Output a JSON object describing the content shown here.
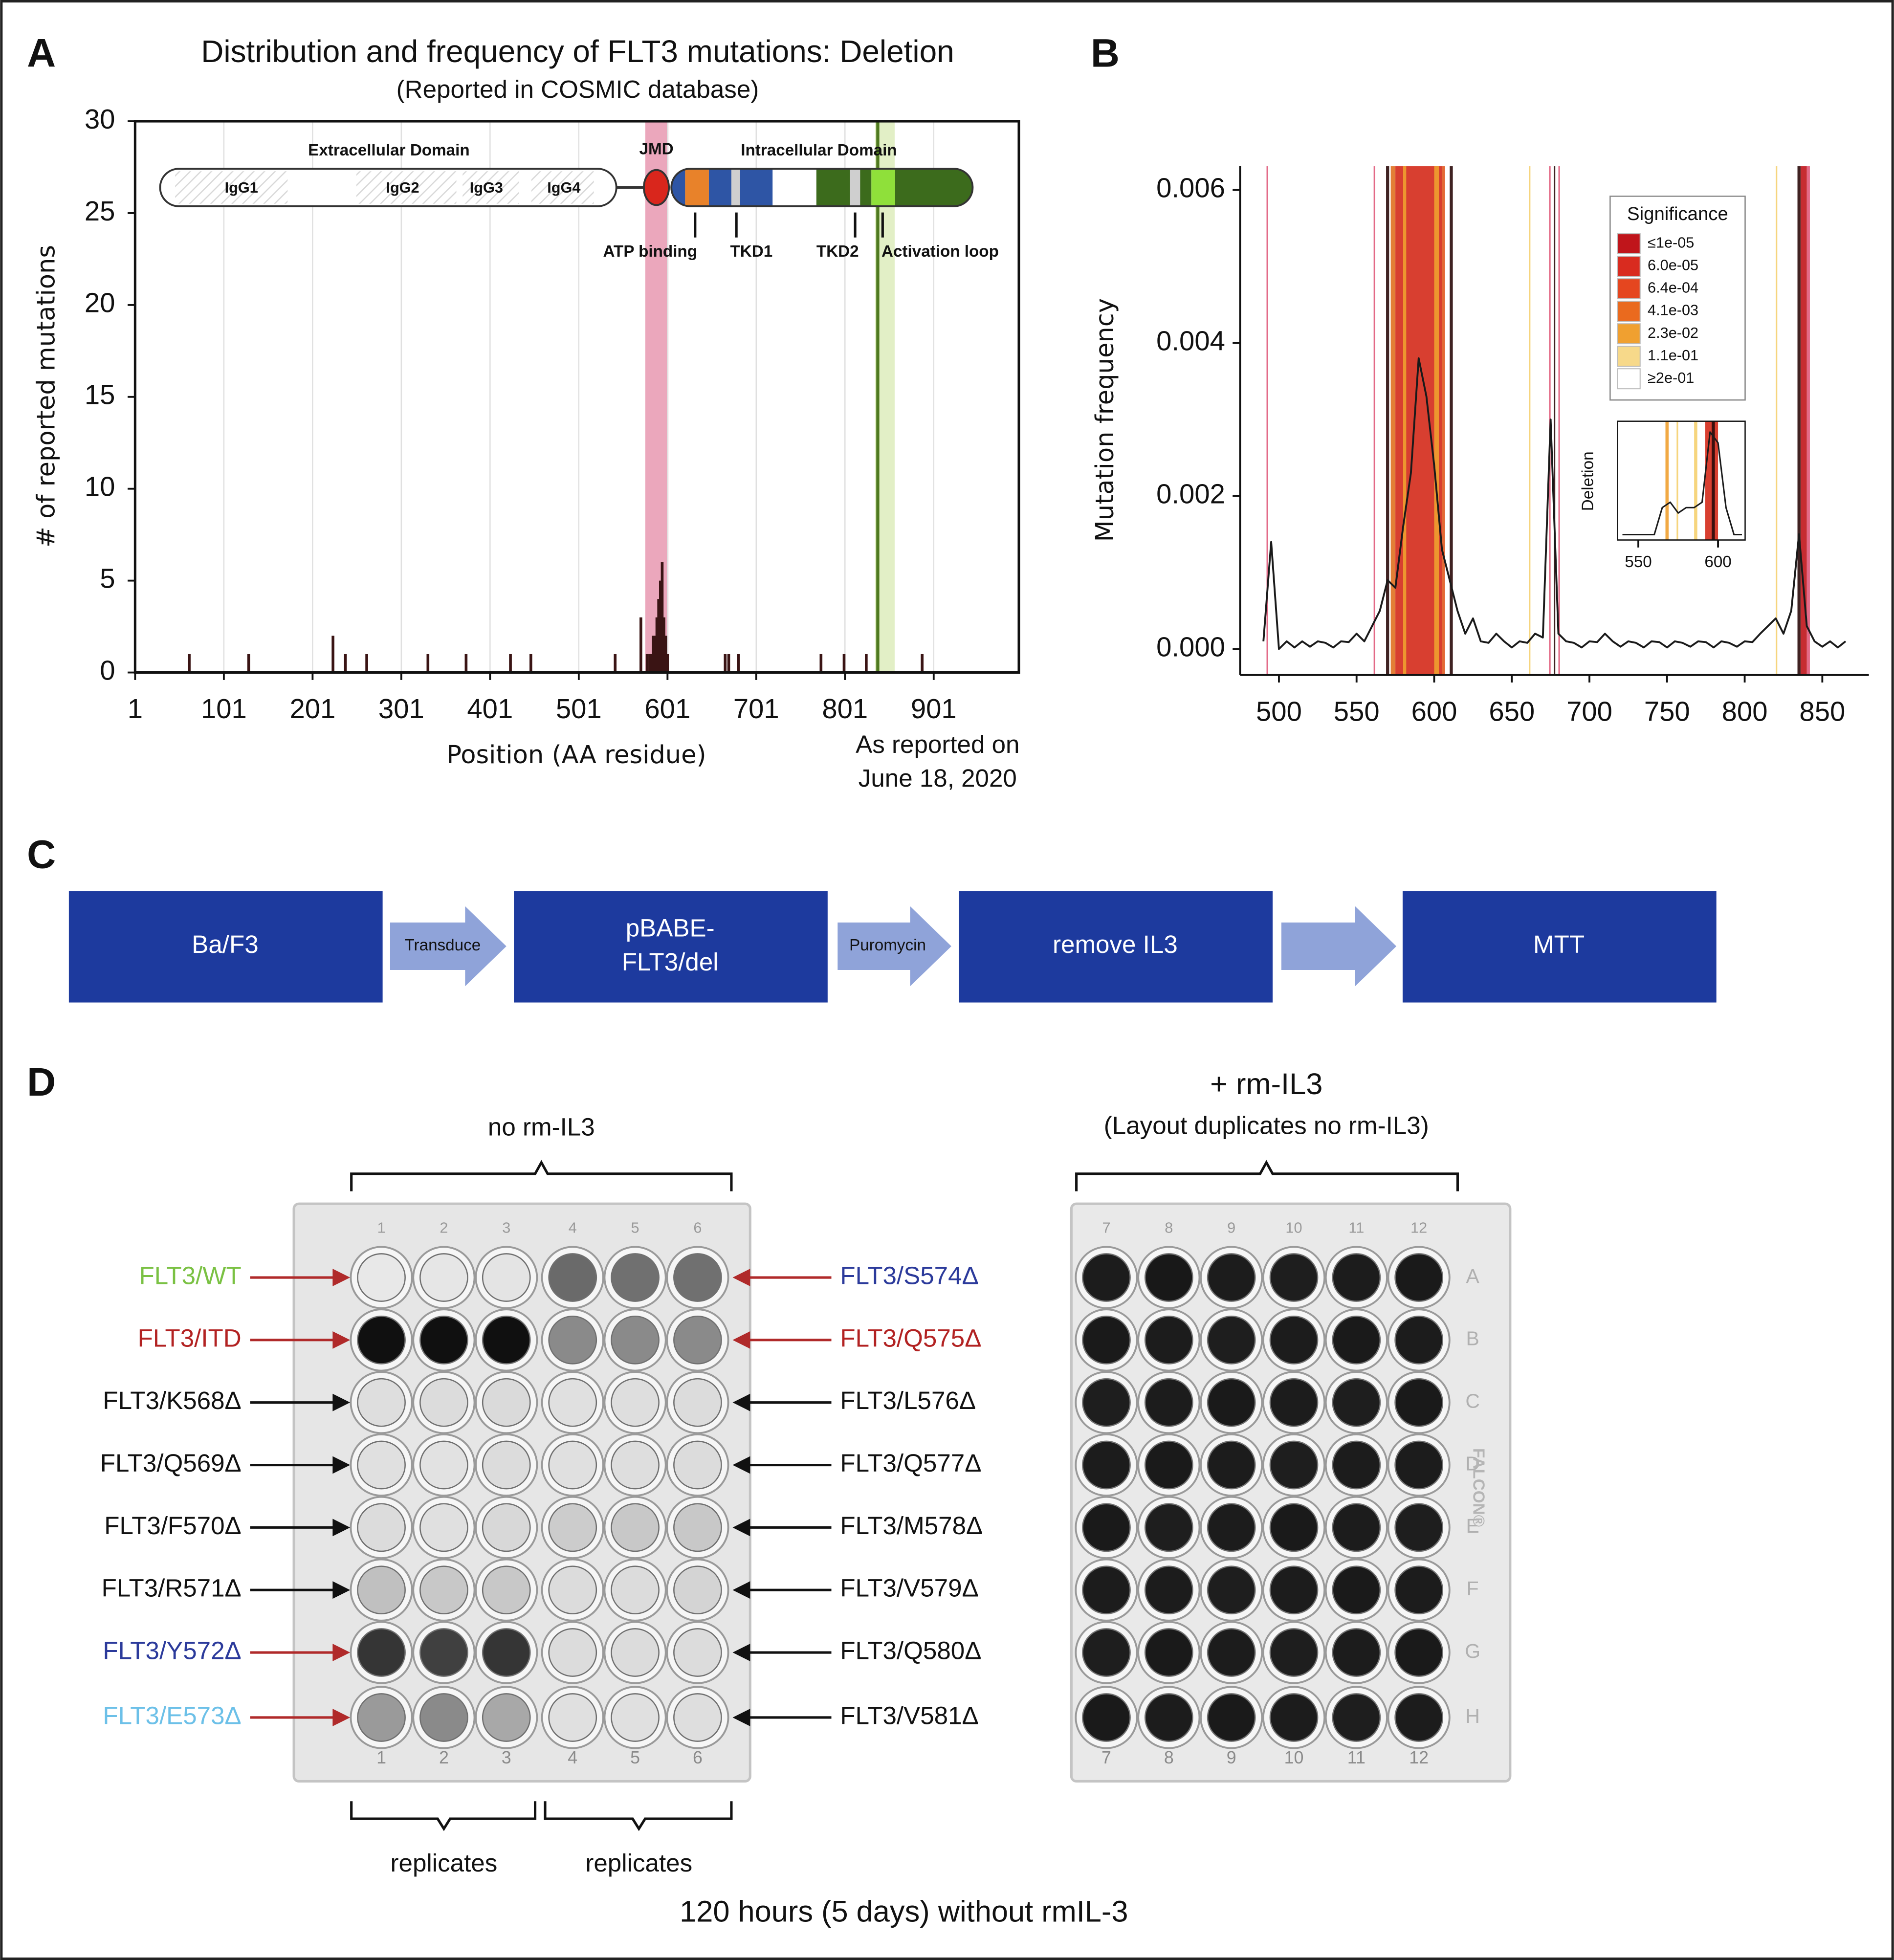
{
  "panel_labels": [
    "A",
    "B",
    "C",
    "D"
  ],
  "chart_data": [
    {
      "type": "bar",
      "title": "Distribution and frequency of FLT3 mutations: Deletion",
      "subtitle": "(Reported in COSMIC database)",
      "xlabel": "Position (AA residue)",
      "ylabel": "# of reported mutations",
      "x": [
        62,
        129,
        224,
        238,
        262,
        331,
        374,
        424,
        447,
        542,
        571,
        578,
        581,
        583,
        585,
        587,
        589,
        591,
        593,
        595,
        597,
        599,
        601,
        666,
        670,
        681,
        774,
        800,
        825,
        888
      ],
      "values": [
        1,
        1,
        2,
        1,
        1,
        1,
        1,
        1,
        1,
        1,
        3,
        1,
        1,
        1,
        2,
        2,
        3,
        4,
        5,
        6,
        3,
        2,
        1,
        1,
        1,
        1,
        1,
        1,
        1,
        1
      ],
      "color": "#3a1414",
      "xlim": [
        1,
        997
      ],
      "ylim": [
        0,
        30
      ],
      "xticks": [
        1,
        101,
        201,
        301,
        401,
        501,
        601,
        701,
        801,
        901
      ],
      "yticks": [
        0,
        5,
        10,
        15,
        20,
        25,
        30
      ],
      "grid": true,
      "highlights": [
        {
          "xrange": [
            576,
            602
          ],
          "color": "#eba7bc"
        },
        {
          "xrange": [
            835,
            857
          ],
          "color": "#e2efc6"
        }
      ],
      "markers": [
        {
          "x": 838,
          "color": "#4f7a1f"
        }
      ],
      "annotation": [
        "As reported on",
        "June 18, 2020"
      ],
      "domain_labels": {
        "extracellular": "Extracellular Domain",
        "intracellular": "Intracellular Domain",
        "jmd": "JMD",
        "igg": [
          "IgG1",
          "IgG2",
          "IgG3",
          "IgG4"
        ],
        "features": [
          "ATP binding",
          "TKD1",
          "TKD2",
          "Activation loop"
        ]
      }
    },
    {
      "type": "line",
      "ylabel": "Mutation frequency",
      "x": [
        490,
        495,
        500,
        505,
        510,
        515,
        520,
        525,
        530,
        535,
        540,
        545,
        550,
        555,
        560,
        565,
        570,
        575,
        580,
        585,
        590,
        595,
        600,
        605,
        610,
        615,
        620,
        625,
        630,
        635,
        640,
        645,
        650,
        655,
        660,
        665,
        670,
        675,
        680,
        685,
        690,
        695,
        700,
        705,
        710,
        715,
        720,
        725,
        730,
        735,
        740,
        745,
        750,
        755,
        760,
        765,
        770,
        775,
        780,
        785,
        790,
        795,
        800,
        805,
        810,
        815,
        820,
        825,
        830,
        835,
        840,
        845,
        850,
        855,
        860,
        865
      ],
      "values": [
        0.0001,
        0.0014,
        0,
        0.0001,
        2e-05,
        0.0001,
        3e-05,
        0.0001,
        8e-05,
        2e-05,
        0.0001,
        9e-05,
        0.0002,
        0.0001,
        0.0003,
        0.0005,
        0.0009,
        0.0008,
        0.0016,
        0.0023,
        0.0038,
        0.0033,
        0.0024,
        0.0013,
        0.0009,
        0.0005,
        0.0002,
        0.0004,
        0.0001,
        8e-05,
        0.0002,
        0.0001,
        2e-05,
        0.0001,
        8e-05,
        0.0002,
        0.00015,
        0.003,
        0.0002,
        0.0001,
        8e-05,
        2e-05,
        0.0001,
        9e-05,
        0.0002,
        0.0001,
        3e-05,
        0.0001,
        8e-05,
        2e-05,
        0.0001,
        9e-05,
        2e-05,
        0.0001,
        8e-05,
        3e-05,
        0.0001,
        9e-05,
        2e-05,
        0.0001,
        8e-05,
        3e-05,
        0.0001,
        9e-05,
        0.0002,
        0.0003,
        0.0004,
        0.0002,
        0.0005,
        0.0015,
        0.0003,
        0.0001,
        3e-05,
        0.0001,
        2e-05,
        0.0001
      ],
      "color": "#1a1a1a",
      "xlim": [
        475,
        880
      ],
      "ylim": [
        -0.00034,
        0.00631
      ],
      "xticks": [
        500,
        550,
        600,
        650,
        700,
        750,
        800,
        850
      ],
      "yticks": [
        {
          "value": 0,
          "label": "0.000"
        },
        0.002,
        0.004,
        0.006
      ],
      "bands": [
        {
          "x": [
            492,
            493
          ],
          "color": "#e05a7a"
        },
        {
          "x": [
            561,
            562
          ],
          "color": "#e05a7a"
        },
        {
          "x": [
            569,
            571
          ],
          "color": "#2a0a0a"
        },
        {
          "x": [
            572,
            575
          ],
          "color": "#e07020"
        },
        {
          "x": [
            575,
            605
          ],
          "color": "#d42a1a"
        },
        {
          "x": [
            580,
            582
          ],
          "color": "#f0a030"
        },
        {
          "x": [
            600,
            603
          ],
          "color": "#f0a030"
        },
        {
          "x": [
            605,
            607
          ],
          "color": "#e05a20"
        },
        {
          "x": [
            610,
            612
          ],
          "color": "#2a0a0a"
        },
        {
          "x": [
            661,
            662
          ],
          "color": "#f5d070"
        },
        {
          "x": [
            674,
            675
          ],
          "color": "#e05a7a"
        },
        {
          "x": [
            677,
            678
          ],
          "color": "#2a0a0a"
        },
        {
          "x": [
            680,
            681
          ],
          "color": "#e05a7a"
        },
        {
          "x": [
            820,
            821
          ],
          "color": "#f5d070"
        },
        {
          "x": [
            834,
            836
          ],
          "color": "#2a0a0a"
        },
        {
          "x": [
            836,
            840
          ],
          "color": "#c0151b"
        },
        {
          "x": [
            840,
            842
          ],
          "color": "#e05a7a"
        }
      ],
      "legend": {
        "title": "Significance",
        "entries": [
          {
            "label": "≤1e-05",
            "color": "#c0151b"
          },
          {
            "label": "6.0e-05",
            "color": "#d92b1f"
          },
          {
            "label": "6.4e-04",
            "color": "#e5461f"
          },
          {
            "label": "4.1e-03",
            "color": "#ea6a1e"
          },
          {
            "label": "2.3e-02",
            "color": "#f0a030"
          },
          {
            "label": "1.1e-01",
            "color": "#f7d98a"
          },
          {
            "label": "≥2e-01",
            "color": "#ffffff"
          }
        ]
      }
    },
    {
      "type": "line",
      "ylabel": "Deletion",
      "x": [
        540,
        545,
        550,
        555,
        560,
        565,
        570,
        575,
        580,
        585,
        590,
        595,
        600,
        605,
        610,
        615
      ],
      "values": [
        0.05,
        0.05,
        0.05,
        0.05,
        0.05,
        0.3,
        0.35,
        0.25,
        0.3,
        0.3,
        0.35,
        1.0,
        0.9,
        0.3,
        0.05,
        0.05
      ],
      "color": "#1a1a1a",
      "xlim": [
        537,
        617
      ],
      "ylim": [
        0,
        1.1
      ],
      "xticks": [
        550,
        600
      ],
      "bands": [
        {
          "x": [
            567,
            569
          ],
          "color": "#f0a030"
        },
        {
          "x": [
            574,
            575
          ],
          "color": "#f5d070"
        },
        {
          "x": [
            585,
            587
          ],
          "color": "#f5d070"
        },
        {
          "x": [
            592,
            600
          ],
          "color": "#d42a1a"
        },
        {
          "x": [
            596,
            598
          ],
          "color": "#2a0a0a"
        }
      ]
    }
  ],
  "flowchart": {
    "nodes": [
      [
        "Ba/F3"
      ],
      [
        "pBABE-",
        "FLT3/del"
      ],
      [
        "remove IL3"
      ],
      [
        "MTT"
      ]
    ],
    "edge_labels": [
      "Transduce",
      "Puromycin"
    ]
  },
  "assay": {
    "left_title": "no rm-IL3",
    "right_title": "+ rm-IL3",
    "right_subtitle": "(Layout duplicates no rm-IL3)",
    "replicates": [
      "replicates",
      "replicates"
    ],
    "footer": "120 hours (5 days) without rmIL-3",
    "left_labels": [
      {
        "text": "FLT3/WT",
        "color": "#7ac143",
        "arrow": "#b02a2a"
      },
      {
        "text": "FLT3/ITD",
        "color": "#b22222",
        "arrow": "#b02a2a"
      },
      {
        "text": "FLT3/K568Δ",
        "color": "#111111",
        "arrow": "#111111"
      },
      {
        "text": "FLT3/Q569Δ",
        "color": "#111111",
        "arrow": "#111111"
      },
      {
        "text": "FLT3/F570Δ",
        "color": "#111111",
        "arrow": "#111111"
      },
      {
        "text": "FLT3/R571Δ",
        "color": "#111111",
        "arrow": "#111111"
      },
      {
        "text": "FLT3/Y572Δ",
        "color": "#2b3a9b",
        "arrow": "#b02a2a"
      },
      {
        "text": "FLT3/E573Δ",
        "color": "#6cc0e8",
        "arrow": "#b02a2a"
      }
    ],
    "right_labels": [
      {
        "text": "FLT3/S574Δ",
        "color": "#2b3a9b",
        "arrow": "#b02a2a"
      },
      {
        "text": "FLT3/Q575Δ",
        "color": "#b22222",
        "arrow": "#b02a2a"
      },
      {
        "text": "FLT3/L576Δ",
        "color": "#111111",
        "arrow": "#111111"
      },
      {
        "text": "FLT3/Q577Δ",
        "color": "#111111",
        "arrow": "#111111"
      },
      {
        "text": "FLT3/M578Δ",
        "color": "#111111",
        "arrow": "#111111"
      },
      {
        "text": "FLT3/V579Δ",
        "color": "#111111",
        "arrow": "#111111"
      },
      {
        "text": "FLT3/Q580Δ",
        "color": "#111111",
        "arrow": "#111111"
      },
      {
        "text": "FLT3/V581Δ",
        "color": "#111111",
        "arrow": "#111111"
      }
    ],
    "plates": [
      {
        "columns": [
          "1",
          "2",
          "3",
          "4",
          "5",
          "6"
        ],
        "wells": [
          [
            "#e8e8e8",
            "#e6e6e6",
            "#e4e4e4",
            "#6a6a6a",
            "#707070",
            "#707070"
          ],
          [
            "#101010",
            "#101010",
            "#101010",
            "#8a8a8a",
            "#8a8a8a",
            "#8a8a8a"
          ],
          [
            "#dedede",
            "#dcdcdc",
            "#dadada",
            "#e0e0e0",
            "#dedede",
            "#dcdcdc"
          ],
          [
            "#e0e0e0",
            "#e2e2e2",
            "#dcdcdc",
            "#e0e0e0",
            "#dedede",
            "#dcdcdc"
          ],
          [
            "#dcdcdc",
            "#e0e0e0",
            "#d8d8d8",
            "#cccccc",
            "#c8c8c8",
            "#c8c8c8"
          ],
          [
            "#c0c0c0",
            "#c8c8c8",
            "#c8c8c8",
            "#dcdcdc",
            "#dcdcdc",
            "#d4d4d4"
          ],
          [
            "#353535",
            "#404040",
            "#353535",
            "#dcdcdc",
            "#dcdcdc",
            "#dcdcdc"
          ],
          [
            "#9a9a9a",
            "#8a8a8a",
            "#a8a8a8",
            "#e0e0e0",
            "#e0e0e0",
            "#dedede"
          ]
        ]
      },
      {
        "columns": [
          "7",
          "8",
          "9",
          "10",
          "11",
          "12"
        ],
        "rows": [
          "A",
          "B",
          "C",
          "D",
          "E",
          "F",
          "G",
          "H"
        ],
        "brand": "FALCON®",
        "wells": [
          [
            "#1c1c1c",
            "#181818",
            "#1c1c1c",
            "#1e1e1e",
            "#1c1c1c",
            "#1a1a1a"
          ],
          [
            "#1a1a1a",
            "#1c1c1c",
            "#1e1e1e",
            "#1c1c1c",
            "#1a1a1a",
            "#1c1c1c"
          ],
          [
            "#1e1e1e",
            "#1c1c1c",
            "#1a1a1a",
            "#1c1c1c",
            "#1e1e1e",
            "#1a1a1a"
          ],
          [
            "#1c1c1c",
            "#1a1a1a",
            "#1c1c1c",
            "#1e1e1e",
            "#1c1c1c",
            "#1c1c1c"
          ],
          [
            "#1a1a1a",
            "#1e1e1e",
            "#1c1c1c",
            "#1a1a1a",
            "#1c1c1c",
            "#1e1e1e"
          ],
          [
            "#1c1c1c",
            "#1c1c1c",
            "#1e1e1e",
            "#1c1c1c",
            "#1a1a1a",
            "#1c1c1c"
          ],
          [
            "#1e1e1e",
            "#1a1a1a",
            "#1c1c1c",
            "#1e1e1e",
            "#1c1c1c",
            "#1a1a1a"
          ],
          [
            "#1a1a1a",
            "#1c1c1c",
            "#1a1a1a",
            "#1c1c1c",
            "#1e1e1e",
            "#1c1c1c"
          ]
        ]
      }
    ]
  }
}
